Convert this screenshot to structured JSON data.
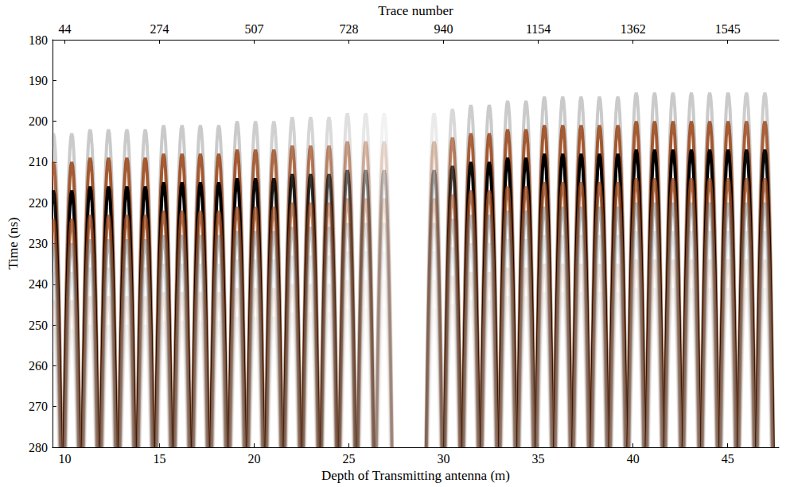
{
  "chart_data": {
    "type": "radargram",
    "xlabel": "Depth of Transmitting antenna (m)",
    "ylabel": "Time (ns)",
    "x2label": "Trace number",
    "x": [
      9.4,
      10.37,
      11.34,
      12.31,
      13.28,
      14.25,
      15.22,
      16.19,
      17.16,
      18.13,
      19.1,
      20.07,
      21.04,
      22.01,
      22.98,
      23.95,
      24.92,
      25.89,
      26.86,
      29.5,
      30.47,
      31.44,
      32.41,
      33.38,
      34.35,
      35.32,
      36.29,
      37.26,
      38.23,
      39.2,
      40.17,
      41.14,
      42.11,
      43.08,
      44.05,
      45.02,
      45.99,
      46.96
    ],
    "values": [
      217,
      217,
      216,
      216,
      216,
      216,
      215,
      215,
      215,
      215,
      214,
      214,
      214,
      213,
      213,
      213,
      212,
      212,
      212,
      212,
      211,
      210,
      210,
      209,
      209,
      208,
      208,
      208,
      208,
      208,
      207,
      207,
      207,
      207,
      207,
      207,
      207,
      207
    ],
    "amplitude": [
      0.9,
      1,
      1,
      1,
      1,
      1,
      1,
      1,
      1,
      1,
      1,
      0.95,
      0.9,
      0.85,
      0.8,
      0.7,
      0.6,
      0.45,
      0.25,
      0.4,
      0.75,
      0.95,
      1,
      1,
      1,
      1,
      1,
      1,
      1,
      1,
      1,
      1,
      1,
      1,
      1,
      1,
      0.95,
      0.95
    ],
    "xlim": [
      9.35,
      47.7
    ],
    "xticks": [
      10,
      15,
      20,
      25,
      30,
      35,
      40,
      45
    ],
    "x2ticks": [
      {
        "value": 10,
        "label": "44"
      },
      {
        "value": 15,
        "label": "274"
      },
      {
        "value": 20,
        "label": "507"
      },
      {
        "value": 25,
        "label": "728"
      },
      {
        "value": 30,
        "label": "940"
      },
      {
        "value": 35,
        "label": "1154"
      },
      {
        "value": 40,
        "label": "1362"
      },
      {
        "value": 45,
        "label": "1545"
      }
    ],
    "ylim": [
      180,
      280
    ],
    "yticks": [
      180,
      190,
      200,
      210,
      220,
      230,
      240,
      250,
      260,
      270,
      280
    ]
  }
}
